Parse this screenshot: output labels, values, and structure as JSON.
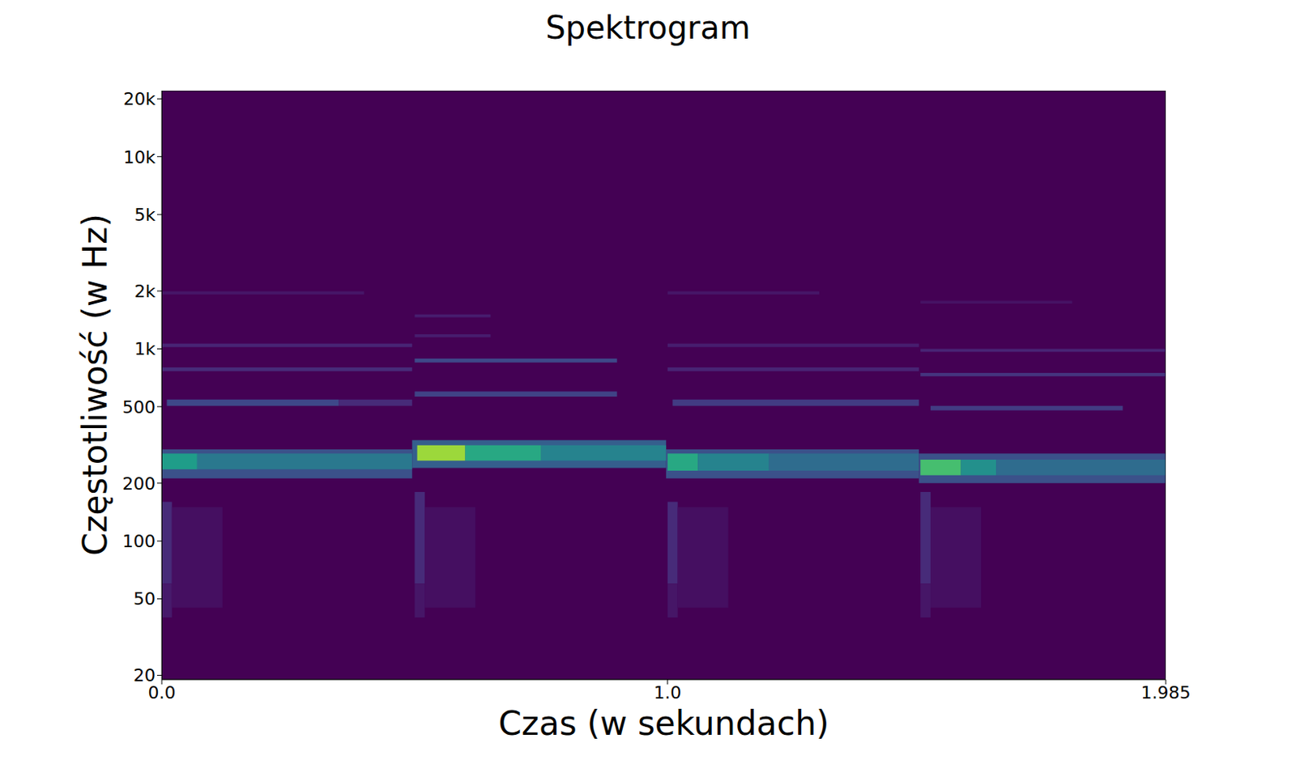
{
  "chart_data": {
    "type": "heatmap",
    "title": "Spektrogram",
    "x_label": "Czas (w sekundach)",
    "y_label": "Częstotliwość (w Hz)",
    "log": "y",
    "grid": false,
    "xlim": [
      0,
      1.985
    ],
    "xticks": [
      {
        "value": 0,
        "label": "0.0"
      },
      {
        "value": 1,
        "label": "1.0"
      },
      1.985
    ],
    "ylim": [
      19,
      22050
    ],
    "yticks": [
      20,
      50,
      100,
      200,
      500,
      {
        "value": 1000,
        "label": "1k"
      },
      {
        "value": 2000,
        "label": "2k"
      },
      {
        "value": 5000,
        "label": "5k"
      },
      {
        "value": 10000,
        "label": "10k"
      },
      {
        "value": 20000,
        "label": "20k"
      }
    ],
    "cells": [
      {
        "t0": 0,
        "t1": 0.495,
        "f0": 212,
        "f1": 300,
        "value": 0.25
      },
      {
        "t0": 0,
        "t1": 0.07,
        "f0": 236,
        "f1": 285,
        "value": 0.55
      },
      {
        "t0": 0.07,
        "t1": 0.495,
        "f0": 236,
        "f1": 285,
        "value": 0.4
      },
      {
        "t0": 0.01,
        "t1": 0.35,
        "f0": 505,
        "f1": 545,
        "value": 0.22
      },
      {
        "t0": 0.35,
        "t1": 0.495,
        "f0": 505,
        "f1": 545,
        "value": 0.12
      },
      {
        "t0": 0,
        "t1": 0.495,
        "f0": 765,
        "f1": 800,
        "value": 0.12
      },
      {
        "t0": 0,
        "t1": 0.495,
        "f0": 1020,
        "f1": 1065,
        "value": 0.1
      },
      {
        "t0": 0,
        "t1": 0.4,
        "f0": 1920,
        "f1": 1990,
        "value": 0.06
      },
      {
        "t0": 0,
        "t1": 0.02,
        "f0": 60,
        "f1": 160,
        "value": 0.12
      },
      {
        "t0": 0,
        "t1": 0.02,
        "f0": 40,
        "f1": 60,
        "value": 0.07
      },
      {
        "t0": 0.02,
        "t1": 0.12,
        "f0": 45,
        "f1": 150,
        "value": 0.04
      },
      {
        "t0": 0.495,
        "t1": 0.997,
        "f0": 240,
        "f1": 335,
        "value": 0.3
      },
      {
        "t0": 0.505,
        "t1": 0.6,
        "f0": 262,
        "f1": 315,
        "value": 0.85
      },
      {
        "t0": 0.6,
        "t1": 0.75,
        "f0": 262,
        "f1": 315,
        "value": 0.6
      },
      {
        "t0": 0.75,
        "t1": 0.997,
        "f0": 262,
        "f1": 315,
        "value": 0.45
      },
      {
        "t0": 0.5,
        "t1": 0.9,
        "f0": 565,
        "f1": 600,
        "value": 0.2
      },
      {
        "t0": 0.5,
        "t1": 0.9,
        "f0": 850,
        "f1": 890,
        "value": 0.22
      },
      {
        "t0": 0.5,
        "t1": 0.65,
        "f0": 1150,
        "f1": 1190,
        "value": 0.08
      },
      {
        "t0": 0.5,
        "t1": 0.65,
        "f0": 1460,
        "f1": 1510,
        "value": 0.08
      },
      {
        "t0": 0.5,
        "t1": 0.52,
        "f0": 60,
        "f1": 180,
        "value": 0.12
      },
      {
        "t0": 0.5,
        "t1": 0.52,
        "f0": 40,
        "f1": 60,
        "value": 0.06
      },
      {
        "t0": 0.52,
        "t1": 0.62,
        "f0": 45,
        "f1": 150,
        "value": 0.04
      },
      {
        "t0": 0.997,
        "t1": 1.497,
        "f0": 212,
        "f1": 300,
        "value": 0.25
      },
      {
        "t0": 1.0,
        "t1": 1.06,
        "f0": 232,
        "f1": 285,
        "value": 0.6
      },
      {
        "t0": 1.06,
        "t1": 1.2,
        "f0": 232,
        "f1": 285,
        "value": 0.45
      },
      {
        "t0": 1.2,
        "t1": 1.497,
        "f0": 232,
        "f1": 285,
        "value": 0.35
      },
      {
        "t0": 1.01,
        "t1": 1.497,
        "f0": 505,
        "f1": 545,
        "value": 0.18
      },
      {
        "t0": 1.0,
        "t1": 1.497,
        "f0": 765,
        "f1": 800,
        "value": 0.1
      },
      {
        "t0": 1.0,
        "t1": 1.497,
        "f0": 1020,
        "f1": 1065,
        "value": 0.08
      },
      {
        "t0": 1.0,
        "t1": 1.3,
        "f0": 1920,
        "f1": 1990,
        "value": 0.06
      },
      {
        "t0": 1.0,
        "t1": 1.02,
        "f0": 60,
        "f1": 160,
        "value": 0.12
      },
      {
        "t0": 1.0,
        "t1": 1.02,
        "f0": 40,
        "f1": 60,
        "value": 0.06
      },
      {
        "t0": 1.02,
        "t1": 1.12,
        "f0": 45,
        "f1": 150,
        "value": 0.04
      },
      {
        "t0": 1.497,
        "t1": 1.985,
        "f0": 200,
        "f1": 285,
        "value": 0.25
      },
      {
        "t0": 1.5,
        "t1": 1.58,
        "f0": 220,
        "f1": 265,
        "value": 0.7
      },
      {
        "t0": 1.58,
        "t1": 1.65,
        "f0": 220,
        "f1": 265,
        "value": 0.5
      },
      {
        "t0": 1.65,
        "t1": 1.985,
        "f0": 220,
        "f1": 265,
        "value": 0.35
      },
      {
        "t0": 1.52,
        "t1": 1.9,
        "f0": 478,
        "f1": 505,
        "value": 0.18
      },
      {
        "t0": 1.5,
        "t1": 1.985,
        "f0": 720,
        "f1": 750,
        "value": 0.15
      },
      {
        "t0": 1.5,
        "t1": 1.985,
        "f0": 965,
        "f1": 1000,
        "value": 0.1
      },
      {
        "t0": 1.5,
        "t1": 1.8,
        "f0": 1720,
        "f1": 1780,
        "value": 0.05
      },
      {
        "t0": 1.5,
        "t1": 1.52,
        "f0": 60,
        "f1": 180,
        "value": 0.12
      },
      {
        "t0": 1.5,
        "t1": 1.52,
        "f0": 40,
        "f1": 60,
        "value": 0.06
      },
      {
        "t0": 1.52,
        "t1": 1.62,
        "f0": 45,
        "f1": 150,
        "value": 0.04
      }
    ]
  }
}
